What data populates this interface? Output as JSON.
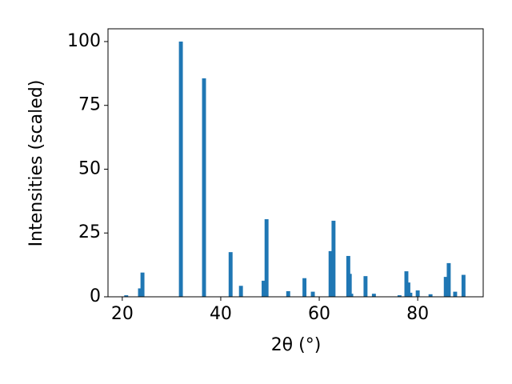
{
  "chart_data": {
    "type": "bar",
    "x_label": "2θ (°)",
    "y_label": "Intensities (scaled)",
    "x": [
      20.8,
      23.6,
      24.1,
      31.9,
      36.6,
      42.0,
      44.1,
      48.7,
      49.3,
      53.7,
      57.0,
      58.7,
      62.3,
      62.9,
      65.9,
      66.2,
      66.5,
      69.4,
      71.1,
      76.3,
      77.7,
      78.1,
      78.5,
      80.0,
      82.6,
      85.7,
      86.3,
      87.6,
      89.3
    ],
    "values": [
      0.6,
      3.3,
      9.5,
      100,
      85.6,
      17.5,
      4.3,
      6.3,
      30.4,
      2.2,
      7.3,
      2.0,
      17.9,
      29.8,
      16.0,
      9.0,
      1.2,
      8.1,
      1.2,
      0.6,
      10.0,
      5.6,
      1.6,
      2.5,
      1.0,
      7.8,
      13.2,
      2.0,
      8.6
    ],
    "color": "#1f77b4",
    "xlim": [
      17.1,
      93.3
    ],
    "xticks": [
      20,
      40,
      60,
      80
    ],
    "ylim": [
      0,
      105
    ],
    "yticks": [
      0,
      25,
      50,
      75,
      100
    ]
  }
}
